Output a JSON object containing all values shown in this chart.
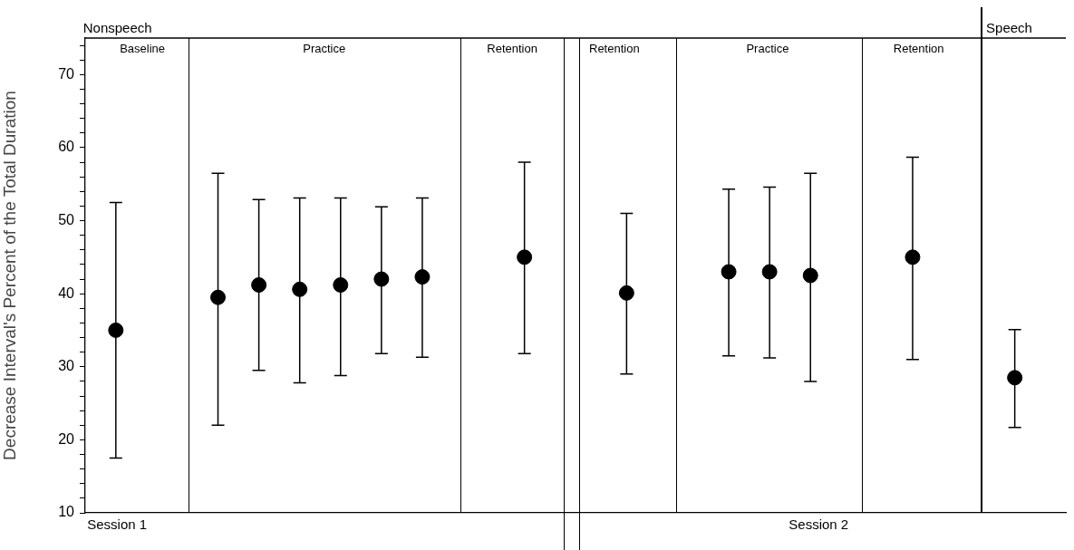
{
  "chart_data": {
    "type": "scatter",
    "ylabel": "Decrease Interval's Percent of the Total Duration",
    "categories": [
      null,
      null,
      null,
      null,
      null,
      null,
      null,
      null,
      null,
      null,
      null,
      null,
      null,
      null,
      null,
      null,
      null,
      null,
      null,
      null,
      null,
      null,
      null,
      null,
      null,
      null,
      null,
      null,
      null,
      null,
      null,
      null,
      null,
      null,
      null,
      null,
      null,
      null,
      null,
      null,
      null,
      null,
      null,
      null,
      null,
      null,
      null,
      null
    ],
    "values": [
      null,
      35,
      null,
      null,
      null,
      null,
      39.5,
      null,
      41.2,
      null,
      40.6,
      null,
      41.2,
      null,
      42,
      null,
      42.3,
      null,
      null,
      null,
      null,
      45,
      null,
      null,
      null,
      null,
      40.1,
      null,
      null,
      null,
      null,
      43,
      null,
      43,
      null,
      42.5,
      null,
      null,
      null,
      null,
      45,
      null,
      null,
      null,
      null,
      28.5,
      null,
      null
    ],
    "errors": [
      null,
      [
        17.5,
        52.5
      ],
      null,
      null,
      null,
      null,
      [
        22,
        56.5
      ],
      null,
      [
        29.5,
        52.9
      ],
      null,
      [
        27.8,
        53.1
      ],
      null,
      [
        28.8,
        53.1
      ],
      null,
      [
        31.8,
        51.9
      ],
      null,
      [
        31.3,
        53.1
      ],
      null,
      null,
      null,
      null,
      [
        31.8,
        58
      ],
      null,
      null,
      null,
      null,
      [
        29,
        51
      ],
      null,
      null,
      null,
      null,
      [
        31.5,
        54.3
      ],
      null,
      [
        31.2,
        54.6
      ],
      null,
      [
        28,
        56.5
      ],
      null,
      null,
      null,
      null,
      [
        31,
        58.7
      ],
      null,
      null,
      null,
      null,
      [
        21.7,
        35.1
      ],
      null,
      null
    ],
    "color": "#000000",
    "marker": "circle",
    "ylim": [
      10,
      75
    ],
    "yticks": [
      10,
      {
        "value": 12,
        "label": null
      },
      {
        "value": 14,
        "label": null
      },
      {
        "value": 16,
        "label": null
      },
      {
        "value": 18,
        "label": null
      },
      20,
      {
        "value": 22,
        "label": null
      },
      {
        "value": 24,
        "label": null
      },
      {
        "value": 26,
        "label": null
      },
      {
        "value": 28,
        "label": null
      },
      30,
      {
        "value": 32,
        "label": null
      },
      {
        "value": 34,
        "label": null
      },
      {
        "value": 36,
        "label": null
      },
      {
        "value": 38,
        "label": null
      },
      40,
      {
        "value": 42,
        "label": null
      },
      {
        "value": 44,
        "label": null
      },
      {
        "value": 46,
        "label": null
      },
      {
        "value": 48,
        "label": null
      },
      50,
      {
        "value": 52,
        "label": null
      },
      {
        "value": 54,
        "label": null
      },
      {
        "value": 56,
        "label": null
      },
      {
        "value": 58,
        "label": null
      },
      60,
      {
        "value": 62,
        "label": null
      },
      {
        "value": 64,
        "label": null
      },
      {
        "value": 66,
        "label": null
      },
      {
        "value": 68,
        "label": null
      },
      70,
      {
        "value": 72,
        "label": null
      },
      {
        "value": 74,
        "label": null
      }
    ],
    "tick_labels": "y",
    "grid": false,
    "legend": false,
    "annotations": [
      "Nonspeech",
      "Baseline",
      "Practice",
      "Retention",
      "Retention",
      "Practice",
      "Retention",
      "Speech",
      "Session 1",
      "Session 2"
    ]
  }
}
